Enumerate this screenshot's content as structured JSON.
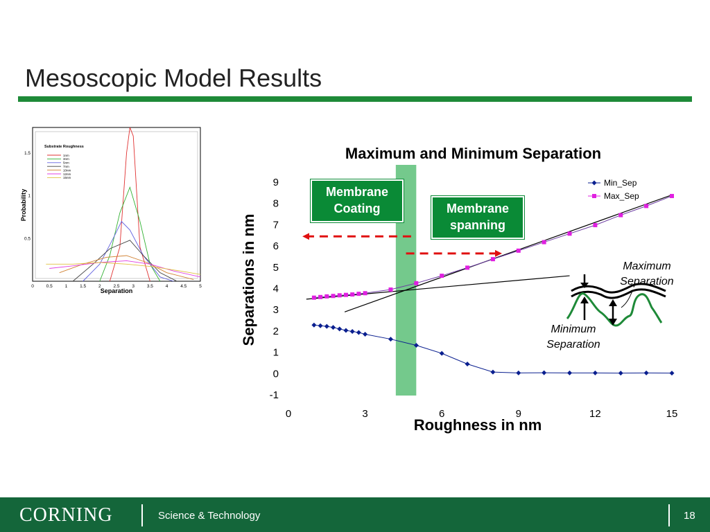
{
  "slide": {
    "title": "Mesoscopic Model Results",
    "page_number": "18",
    "footer_logo": "CORNING",
    "footer_dept": "Science & Technology"
  },
  "colors": {
    "accent_green": "#1e8a38",
    "footer_green": "#14663a",
    "callout_green": "#0a8a36",
    "band_green": "#5cbf78",
    "min_sep": "#0a1f8f",
    "max_sep": "#e020e0",
    "arrow_red": "#e01010"
  },
  "callouts": {
    "membrane_coating": "Membrane Coating",
    "membrane_spanning": "Membrane spanning"
  },
  "diagram": {
    "max_label": "Maximum Separation",
    "min_label": "Minimum Separation"
  },
  "chart_data": [
    {
      "type": "line",
      "title": "Maximum and Minimum Separation",
      "xlabel": "Roughness in nm",
      "ylabel": "Separations in nm",
      "xlim": [
        0,
        15
      ],
      "ylim": [
        -1,
        9
      ],
      "xticks": [
        0,
        3,
        6,
        9,
        12,
        15
      ],
      "yticks": [
        -1,
        0,
        1,
        2,
        3,
        4,
        5,
        6,
        7,
        8,
        9
      ],
      "legend_position": "top-right",
      "grid": false,
      "series": [
        {
          "name": "Min_Sep",
          "marker": "diamond",
          "x": [
            1,
            1.25,
            1.5,
            1.75,
            2,
            2.25,
            2.5,
            2.75,
            3,
            4,
            5,
            6,
            7,
            8,
            9,
            10,
            11,
            12,
            13,
            14,
            15
          ],
          "y": [
            2.28,
            2.25,
            2.22,
            2.17,
            2.1,
            2.03,
            1.98,
            1.93,
            1.85,
            1.62,
            1.33,
            0.95,
            0.45,
            0.07,
            0.03,
            0.04,
            0.03,
            0.03,
            0.02,
            0.03,
            0.02
          ]
        },
        {
          "name": "Max_Sep",
          "marker": "square",
          "x": [
            1,
            1.25,
            1.5,
            1.75,
            2,
            2.25,
            2.5,
            2.75,
            3,
            4,
            5,
            6,
            7,
            8,
            9,
            10,
            11,
            12,
            13,
            14,
            15
          ],
          "y": [
            3.57,
            3.6,
            3.63,
            3.65,
            3.68,
            3.7,
            3.72,
            3.75,
            3.78,
            3.95,
            4.25,
            4.6,
            4.98,
            5.38,
            5.78,
            6.18,
            6.58,
            6.98,
            7.45,
            7.88,
            8.35
          ]
        }
      ],
      "trend_lines": [
        {
          "x": [
            0.7,
            11
          ],
          "y": [
            3.5,
            4.6
          ]
        },
        {
          "x": [
            2.2,
            15
          ],
          "y": [
            2.9,
            8.4
          ]
        }
      ],
      "highlight_band": {
        "x": [
          4.2,
          5.0
        ]
      },
      "arrows": [
        {
          "from": [
            4.8,
            6.45
          ],
          "to": [
            0.6,
            6.45
          ]
        },
        {
          "from": [
            4.6,
            5.65
          ],
          "to": [
            8.3,
            5.65
          ]
        }
      ]
    },
    {
      "type": "line",
      "title": "Substrate Roughness",
      "xlabel": "Separation",
      "ylabel": "Probability",
      "xlim": [
        0,
        5
      ],
      "ylim": [
        0,
        1.8
      ],
      "xticks": [
        0,
        0.5,
        1,
        1.5,
        2,
        2.5,
        3,
        3.5,
        4,
        4.5,
        5
      ],
      "yticks": [
        0.5,
        1,
        1.5
      ],
      "legend_position": "top-left",
      "series": [
        {
          "name": "1nm",
          "color": "#e03030",
          "x": [
            2.3,
            2.6,
            2.8,
            2.9,
            3.0,
            3.2,
            3.5
          ],
          "y": [
            0.0,
            0.4,
            1.5,
            1.8,
            1.7,
            0.4,
            0.0
          ]
        },
        {
          "name": "3nm",
          "color": "#30b030",
          "x": [
            2.0,
            2.3,
            2.6,
            2.9,
            3.2,
            3.5,
            3.8
          ],
          "y": [
            0.0,
            0.3,
            0.8,
            1.1,
            0.7,
            0.2,
            0.0
          ]
        },
        {
          "name": "5nm",
          "color": "#6060e0",
          "x": [
            1.5,
            2.0,
            2.4,
            2.65,
            2.9,
            3.3,
            3.8,
            4.2
          ],
          "y": [
            0.0,
            0.2,
            0.5,
            0.7,
            0.6,
            0.3,
            0.05,
            0.0
          ]
        },
        {
          "name": "7nm",
          "color": "#404040",
          "x": [
            1.2,
            1.8,
            2.3,
            2.9,
            3.3,
            3.8,
            4.3
          ],
          "y": [
            0.0,
            0.2,
            0.38,
            0.48,
            0.3,
            0.1,
            0.0
          ]
        },
        {
          "name": "10nm",
          "color": "#d08030",
          "x": [
            0.8,
            1.5,
            2.2,
            2.8,
            3.4,
            4.0,
            4.8
          ],
          "y": [
            0.1,
            0.2,
            0.28,
            0.3,
            0.22,
            0.1,
            0.02
          ]
        },
        {
          "name": "12nm",
          "color": "#e040e0",
          "x": [
            0.5,
            1.2,
            2.0,
            2.8,
            3.5,
            4.2,
            5.0
          ],
          "y": [
            0.15,
            0.18,
            0.22,
            0.24,
            0.2,
            0.12,
            0.05
          ]
        },
        {
          "name": "15nm",
          "color": "#e0c040",
          "x": [
            0.4,
            1.2,
            2.0,
            2.8,
            3.6,
            4.4,
            5.0
          ],
          "y": [
            0.2,
            0.2,
            0.22,
            0.2,
            0.17,
            0.12,
            0.08
          ]
        }
      ]
    }
  ]
}
